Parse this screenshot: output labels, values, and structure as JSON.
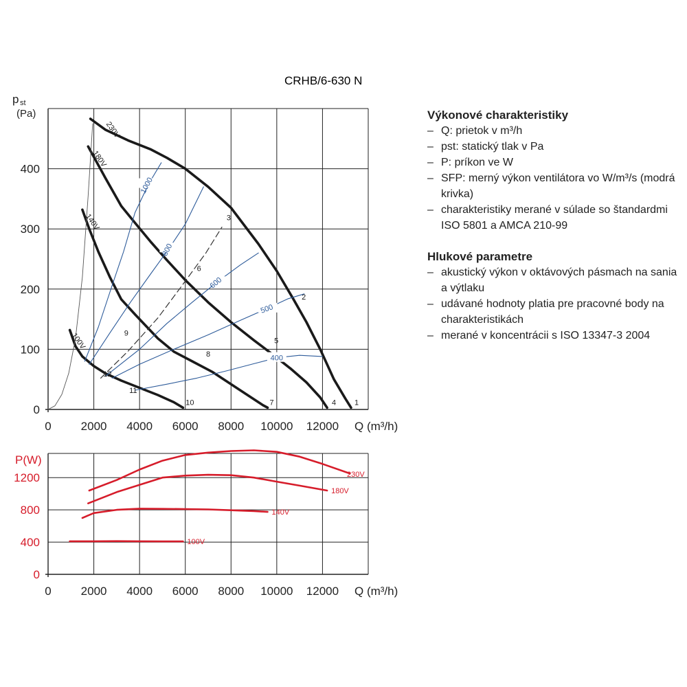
{
  "title": "CRHB/6-630 N",
  "sidebar": {
    "section1_title": "Výkonové charakteristiky",
    "section1_items": [
      "Q: prietok v m³/h",
      "pst: statický tlak v Pa",
      "P: príkon ve W",
      "SFP: merný výkon ventilátora vo W/m³/s (modrá krivka)",
      "charakteristiky merané v súlade so štandardmi ISO 5801 a AMCA 210-99"
    ],
    "section2_title": "Hlukové parametre",
    "section2_items": [
      "akustický výkon v oktávových pásmach na sania a výtlaku",
      "udávané hodnoty platia pre pracovné body na charakteristikách",
      "merané v koncentrácii s ISO 13347-3 2004"
    ]
  },
  "colors": {
    "black": "#1a1a1a",
    "blue": "#2d5b9a",
    "red": "#d61c2a",
    "grid": "#222222"
  },
  "chart_data": [
    {
      "type": "line",
      "ylabel": "pst (Pa)",
      "xlabel": "Q (m³/h)",
      "xlim": [
        0,
        14000
      ],
      "ylim": [
        0,
        500
      ],
      "xticks": [
        0,
        2000,
        4000,
        6000,
        8000,
        10000,
        12000
      ],
      "yticks": [
        0,
        100,
        200,
        300,
        400
      ],
      "grid": true,
      "series": [
        {
          "name": "230V",
          "style": "fan",
          "points": [
            [
              1850,
              483
            ],
            [
              2500,
              465
            ],
            [
              3500,
              447
            ],
            [
              4500,
              432
            ],
            [
              5200,
              418
            ],
            [
              6000,
              400
            ],
            [
              7000,
              370
            ],
            [
              8000,
              335
            ],
            [
              9200,
              275
            ],
            [
              10000,
              230
            ],
            [
              10700,
              185
            ],
            [
              11300,
              145
            ],
            [
              11900,
              100
            ],
            [
              12500,
              50
            ],
            [
              13000,
              18
            ],
            [
              13250,
              3
            ]
          ]
        },
        {
          "name": "180V",
          "style": "fan",
          "points": [
            [
              1750,
              437
            ],
            [
              2500,
              385
            ],
            [
              3200,
              338
            ],
            [
              3800,
              310
            ],
            [
              4500,
              278
            ],
            [
              5200,
              248
            ],
            [
              6000,
              215
            ],
            [
              7000,
              178
            ],
            [
              8000,
              145
            ],
            [
              9000,
              115
            ],
            [
              9800,
              92
            ],
            [
              10600,
              68
            ],
            [
              11300,
              45
            ],
            [
              11900,
              20
            ],
            [
              12200,
              3
            ]
          ]
        },
        {
          "name": "140V",
          "style": "fan",
          "points": [
            [
              1500,
              332
            ],
            [
              1800,
              300
            ],
            [
              2200,
              262
            ],
            [
              2700,
              220
            ],
            [
              3200,
              183
            ],
            [
              3800,
              158
            ],
            [
              4300,
              138
            ],
            [
              4800,
              118
            ],
            [
              5500,
              96
            ],
            [
              6300,
              80
            ],
            [
              7200,
              62
            ],
            [
              8000,
              42
            ],
            [
              8800,
              22
            ],
            [
              9400,
              7
            ],
            [
              9600,
              3
            ]
          ]
        },
        {
          "name": "100V",
          "style": "fan",
          "points": [
            [
              950,
              132
            ],
            [
              1200,
              105
            ],
            [
              1500,
              88
            ],
            [
              2000,
              72
            ],
            [
              2500,
              60
            ],
            [
              3200,
              48
            ],
            [
              4000,
              36
            ],
            [
              4800,
              24
            ],
            [
              5500,
              12
            ],
            [
              5900,
              3
            ]
          ]
        },
        {
          "name": "3",
          "style": "dashed",
          "points": [
            [
              2300,
              52
            ],
            [
              3500,
              97
            ],
            [
              4800,
              152
            ],
            [
              5800,
              203
            ],
            [
              6900,
              260
            ],
            [
              7600,
              303
            ]
          ]
        },
        {
          "name": "parabola",
          "style": "thin",
          "points": [
            [
              0,
              0
            ],
            [
              300,
              6
            ],
            [
              600,
              25
            ],
            [
              900,
              60
            ],
            [
              1200,
              118
            ],
            [
              1500,
              220
            ],
            [
              1750,
              355
            ],
            [
              1950,
              475
            ]
          ]
        },
        {
          "name": "1000",
          "style": "sfp",
          "points": [
            [
              1600,
              80
            ],
            [
              2200,
              137
            ],
            [
              2800,
              206
            ],
            [
              3300,
              262
            ],
            [
              3800,
              327
            ],
            [
              4400,
              375
            ],
            [
              4950,
              410
            ]
          ]
        },
        {
          "name": "800",
          "style": "sfp",
          "points": [
            [
              1800,
              75
            ],
            [
              2700,
              127
            ],
            [
              3600,
              178
            ],
            [
              4500,
              226
            ],
            [
              5300,
              268
            ],
            [
              6000,
              308
            ],
            [
              6800,
              370
            ]
          ]
        },
        {
          "name": "600",
          "style": "sfp",
          "points": [
            [
              2500,
              55
            ],
            [
              4000,
              100
            ],
            [
              5200,
              143
            ],
            [
              6300,
              178
            ],
            [
              7400,
              212
            ],
            [
              8400,
              240
            ],
            [
              9200,
              260
            ]
          ]
        },
        {
          "name": "500",
          "style": "sfp",
          "points": [
            [
              2800,
              52
            ],
            [
              4000,
              75
            ],
            [
              5500,
              100
            ],
            [
              7000,
              124
            ],
            [
              8400,
              148
            ],
            [
              9600,
              168
            ],
            [
              10500,
              184
            ],
            [
              11200,
              192
            ]
          ]
        },
        {
          "name": "400",
          "style": "sfp",
          "points": [
            [
              3800,
              32
            ],
            [
              5200,
              42
            ],
            [
              6500,
              52
            ],
            [
              7800,
              64
            ],
            [
              9000,
              76
            ],
            [
              10000,
              86
            ],
            [
              11000,
              90
            ],
            [
              12000,
              88
            ]
          ]
        }
      ],
      "point_labels": [
        "1",
        "2",
        "3",
        "4",
        "5",
        "6",
        "7",
        "8",
        "9",
        "10",
        "11",
        "12"
      ],
      "annotations": [
        "230V",
        "180V",
        "140V",
        "100V",
        "1000",
        "800",
        "600",
        "500",
        "400"
      ]
    },
    {
      "type": "line",
      "ylabel": "P(W)",
      "xlabel": "Q (m³/h)",
      "xlim": [
        0,
        14000
      ],
      "ylim": [
        0,
        1500
      ],
      "xticks": [
        0,
        2000,
        4000,
        6000,
        8000,
        10000,
        12000
      ],
      "yticks": [
        0,
        400,
        800,
        1200
      ],
      "grid": true,
      "series": [
        {
          "name": "230V",
          "points": [
            [
              1800,
              1040
            ],
            [
              3000,
              1170
            ],
            [
              4000,
              1300
            ],
            [
              5000,
              1410
            ],
            [
              6000,
              1480
            ],
            [
              7000,
              1510
            ],
            [
              8000,
              1530
            ],
            [
              9000,
              1538
            ],
            [
              10000,
              1520
            ],
            [
              11000,
              1460
            ],
            [
              12000,
              1370
            ],
            [
              13200,
              1250
            ]
          ]
        },
        {
          "name": "180V",
          "points": [
            [
              1750,
              880
            ],
            [
              3000,
              1020
            ],
            [
              4000,
              1110
            ],
            [
              5000,
              1200
            ],
            [
              6000,
              1225
            ],
            [
              7000,
              1235
            ],
            [
              8000,
              1230
            ],
            [
              9000,
              1200
            ],
            [
              10000,
              1150
            ],
            [
              11000,
              1100
            ],
            [
              12200,
              1040
            ]
          ]
        },
        {
          "name": "140V",
          "points": [
            [
              1500,
              700
            ],
            [
              2000,
              760
            ],
            [
              3000,
              800
            ],
            [
              4000,
              815
            ],
            [
              5000,
              812
            ],
            [
              6000,
              810
            ],
            [
              7000,
              805
            ],
            [
              8000,
              795
            ],
            [
              9000,
              785
            ],
            [
              9600,
              775
            ]
          ]
        },
        {
          "name": "100V",
          "points": [
            [
              950,
              410
            ],
            [
              2000,
              410
            ],
            [
              3000,
              412
            ],
            [
              4000,
              410
            ],
            [
              5000,
              408
            ],
            [
              5900,
              408
            ]
          ]
        }
      ],
      "annotations": [
        "230V",
        "180V",
        "140V",
        "100V"
      ]
    }
  ]
}
